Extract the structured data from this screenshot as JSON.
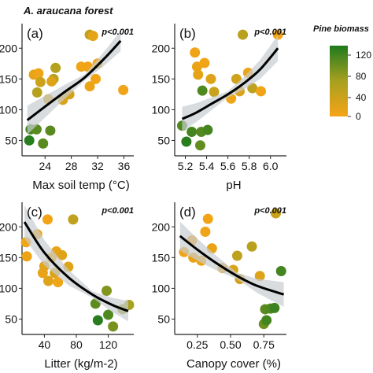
{
  "figure": {
    "title": "A. araucana forest",
    "legend_title": "Pine biomass",
    "legend_ticks": [
      "120",
      "80",
      "40",
      "0"
    ],
    "colors": {
      "high": "#1e7a1e",
      "mid": "#a8a020",
      "low": "#f5a416",
      "fit": "#000000",
      "ci": "#c8cdd2"
    }
  },
  "chart_data": [
    {
      "type": "scatter",
      "panel": "(a)",
      "annotation": "p<0.001",
      "xlabel": "Max soil temp (°C)",
      "ylabel": "",
      "xlim": [
        20.5,
        37.5
      ],
      "ylim": [
        25,
        240
      ],
      "xticks": [
        "24",
        "28",
        "32",
        "36"
      ],
      "xtick_values": [
        24,
        28,
        32,
        36
      ],
      "yticks": [
        "50",
        "100",
        "150",
        "200"
      ],
      "ytick_values": [
        50,
        100,
        150,
        200
      ],
      "fit": {
        "x": [
          21.3,
          24,
          27,
          30,
          33,
          35.5
        ],
        "y": [
          83,
          105,
          129,
          152,
          183,
          212
        ]
      },
      "points": [
        {
          "x": 21.6,
          "y": 50,
          "b": 135
        },
        {
          "x": 21.8,
          "y": 68,
          "b": 120
        },
        {
          "x": 22.7,
          "y": 68,
          "b": 110
        },
        {
          "x": 23.7,
          "y": 45,
          "b": 110
        },
        {
          "x": 24.8,
          "y": 66,
          "b": 110
        },
        {
          "x": 22.3,
          "y": 157,
          "b": 12
        },
        {
          "x": 23.0,
          "y": 159,
          "b": 5
        },
        {
          "x": 22.8,
          "y": 128,
          "b": 58
        },
        {
          "x": 23.3,
          "y": 145,
          "b": 38
        },
        {
          "x": 24.5,
          "y": 117,
          "b": 28
        },
        {
          "x": 25.3,
          "y": 150,
          "b": 55
        },
        {
          "x": 25.6,
          "y": 168,
          "b": 58
        },
        {
          "x": 25.0,
          "y": 146,
          "b": 22
        },
        {
          "x": 26.7,
          "y": 116,
          "b": 25
        },
        {
          "x": 27.7,
          "y": 125,
          "b": 30
        },
        {
          "x": 29.5,
          "y": 170,
          "b": 5
        },
        {
          "x": 30.5,
          "y": 170,
          "b": 3
        },
        {
          "x": 30.8,
          "y": 222,
          "b": 48
        },
        {
          "x": 31.3,
          "y": 220,
          "b": 15
        },
        {
          "x": 30.8,
          "y": 138,
          "b": 8
        },
        {
          "x": 31.7,
          "y": 150,
          "b": 3
        },
        {
          "x": 32.0,
          "y": 175,
          "b": 5
        },
        {
          "x": 35.9,
          "y": 132,
          "b": 5
        }
      ]
    },
    {
      "type": "scatter",
      "panel": "(b)",
      "annotation": "p<0.001",
      "xlabel": "pH",
      "ylabel": "",
      "xlim": [
        5.1,
        6.15
      ],
      "ylim": [
        25,
        240
      ],
      "xticks": [
        "5.2",
        "5.4",
        "5.6",
        "5.8",
        "6.0"
      ],
      "xtick_values": [
        5.2,
        5.4,
        5.6,
        5.8,
        6.0
      ],
      "yticks": [
        "50",
        "100",
        "150",
        "200"
      ],
      "ytick_values": [
        50,
        100,
        150,
        200
      ],
      "fit": {
        "x": [
          5.17,
          5.3,
          5.45,
          5.6,
          5.75,
          5.9,
          6.07
        ],
        "y": [
          85,
          95,
          110,
          125,
          143,
          165,
          200
        ]
      },
      "points": [
        {
          "x": 5.17,
          "y": 74,
          "b": 115
        },
        {
          "x": 5.21,
          "y": 48,
          "b": 135
        },
        {
          "x": 5.26,
          "y": 64,
          "b": 120
        },
        {
          "x": 5.34,
          "y": 42,
          "b": 105
        },
        {
          "x": 5.35,
          "y": 64,
          "b": 112
        },
        {
          "x": 5.41,
          "y": 67,
          "b": 120
        },
        {
          "x": 5.29,
          "y": 193,
          "b": 5
        },
        {
          "x": 5.31,
          "y": 170,
          "b": 10
        },
        {
          "x": 5.32,
          "y": 157,
          "b": 15
        },
        {
          "x": 5.38,
          "y": 176,
          "b": 5
        },
        {
          "x": 5.36,
          "y": 131,
          "b": 115
        },
        {
          "x": 5.44,
          "y": 150,
          "b": 20
        },
        {
          "x": 5.47,
          "y": 129,
          "b": 40
        },
        {
          "x": 5.63,
          "y": 118,
          "b": 5
        },
        {
          "x": 5.68,
          "y": 150,
          "b": 35
        },
        {
          "x": 5.71,
          "y": 130,
          "b": 25
        },
        {
          "x": 5.74,
          "y": 222,
          "b": 55
        },
        {
          "x": 5.79,
          "y": 160,
          "b": 8
        },
        {
          "x": 5.83,
          "y": 135,
          "b": 50
        },
        {
          "x": 5.91,
          "y": 130,
          "b": 5
        },
        {
          "x": 6.07,
          "y": 222,
          "b": 3
        }
      ]
    },
    {
      "type": "scatter",
      "panel": "(c)",
      "annotation": "p<0.001",
      "xlabel": "Litter (kg/m-2)",
      "ylabel": "",
      "xlim": [
        12,
        152
      ],
      "ylim": [
        25,
        240
      ],
      "xticks": [
        "40",
        "80",
        "120"
      ],
      "xtick_values": [
        40,
        80,
        120
      ],
      "yticks": [
        "50",
        "100",
        "150",
        "200"
      ],
      "ytick_values": [
        50,
        100,
        150,
        200
      ],
      "fit": {
        "x": [
          15,
          40,
          70,
          100,
          125,
          145
        ],
        "y": [
          208,
          158,
          118,
          90,
          73,
          63
        ]
      },
      "points": [
        {
          "x": 17,
          "y": 175,
          "b": 5
        },
        {
          "x": 18,
          "y": 152,
          "b": 8
        },
        {
          "x": 31,
          "y": 188,
          "b": 5
        },
        {
          "x": 38,
          "y": 125,
          "b": 12
        },
        {
          "x": 40,
          "y": 136,
          "b": 15
        },
        {
          "x": 44,
          "y": 212,
          "b": 3
        },
        {
          "x": 45,
          "y": 112,
          "b": 20
        },
        {
          "x": 49,
          "y": 150,
          "b": 5
        },
        {
          "x": 53,
          "y": 125,
          "b": 25
        },
        {
          "x": 55,
          "y": 160,
          "b": 10
        },
        {
          "x": 57,
          "y": 110,
          "b": 5
        },
        {
          "x": 62,
          "y": 154,
          "b": 20
        },
        {
          "x": 70,
          "y": 135,
          "b": 20
        },
        {
          "x": 76,
          "y": 212,
          "b": 48
        },
        {
          "x": 104,
          "y": 75,
          "b": 108
        },
        {
          "x": 107,
          "y": 48,
          "b": 135
        },
        {
          "x": 118,
          "y": 96,
          "b": 90
        },
        {
          "x": 120,
          "y": 57,
          "b": 115
        },
        {
          "x": 126,
          "y": 38,
          "b": 95
        },
        {
          "x": 138,
          "y": 66,
          "b": 80
        },
        {
          "x": 146,
          "y": 73,
          "b": 70
        }
      ]
    },
    {
      "type": "scatter",
      "panel": "(d)",
      "annotation": "p<0.001",
      "xlabel": "Canopy cover (%)",
      "ylabel": "",
      "xlim": [
        0.08,
        0.92
      ],
      "ylim": [
        25,
        240
      ],
      "xticks": [
        "0.25",
        "0.50",
        "0.75"
      ],
      "xtick_values": [
        0.25,
        0.5,
        0.75
      ],
      "yticks": [
        "50",
        "100",
        "150",
        "200"
      ],
      "ytick_values": [
        50,
        100,
        150,
        200
      ],
      "fit": {
        "x": [
          0.12,
          0.25,
          0.4,
          0.55,
          0.7,
          0.9
        ],
        "y": [
          185,
          163,
          140,
          120,
          104,
          90
        ]
      },
      "points": [
        {
          "x": 0.15,
          "y": 159,
          "b": 5
        },
        {
          "x": 0.21,
          "y": 178,
          "b": 5
        },
        {
          "x": 0.22,
          "y": 150,
          "b": 10
        },
        {
          "x": 0.28,
          "y": 145,
          "b": 8
        },
        {
          "x": 0.31,
          "y": 192,
          "b": 5
        },
        {
          "x": 0.33,
          "y": 213,
          "b": 3
        },
        {
          "x": 0.36,
          "y": 165,
          "b": 10
        },
        {
          "x": 0.44,
          "y": 133,
          "b": 12
        },
        {
          "x": 0.52,
          "y": 130,
          "b": 25
        },
        {
          "x": 0.55,
          "y": 153,
          "b": 50
        },
        {
          "x": 0.57,
          "y": 115,
          "b": 30
        },
        {
          "x": 0.66,
          "y": 168,
          "b": 55
        },
        {
          "x": 0.72,
          "y": 120,
          "b": 20
        },
        {
          "x": 0.75,
          "y": 42,
          "b": 100
        },
        {
          "x": 0.76,
          "y": 66,
          "b": 110
        },
        {
          "x": 0.77,
          "y": 48,
          "b": 120
        },
        {
          "x": 0.8,
          "y": 67,
          "b": 115
        },
        {
          "x": 0.83,
          "y": 68,
          "b": 125
        },
        {
          "x": 0.84,
          "y": 222,
          "b": 40
        },
        {
          "x": 0.88,
          "y": 128,
          "b": 120
        }
      ]
    }
  ]
}
